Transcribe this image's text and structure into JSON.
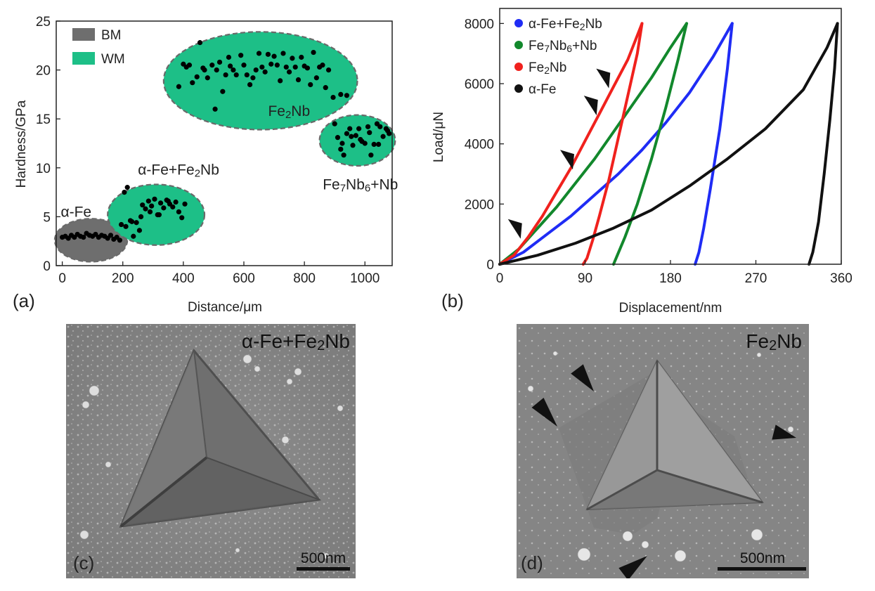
{
  "chart_data": [
    {
      "panel": "(a)",
      "type": "scatter",
      "xlabel": "Distance/μm",
      "ylabel": "Hardness/GPa",
      "xlim": [
        -20,
        1090
      ],
      "ylim": [
        0,
        25
      ],
      "xticks": [
        "0",
        "200",
        "400",
        "600",
        "800",
        "1000"
      ],
      "yticks": [
        "0",
        "5",
        "10",
        "15",
        "20",
        "25"
      ],
      "legend": {
        "placement": "top-left",
        "entries": [
          {
            "label": "BM",
            "color": "#6e6e6e"
          },
          {
            "label": "WM",
            "color": "#1dbf87"
          }
        ]
      },
      "regions": [
        {
          "label": "α-Fe",
          "type": "BM",
          "color": "#6e6e6e",
          "cx": 95,
          "cy": 2.6,
          "rx": 120,
          "ry": 2.2
        },
        {
          "label": "α-Fe+Fe2Nb",
          "type": "WM",
          "color": "#1dbf87",
          "cx": 310,
          "cy": 5.2,
          "rx": 160,
          "ry": 3.1
        },
        {
          "label": "Fe2Nb",
          "type": "WM",
          "color": "#1dbf87",
          "cx": 655,
          "cy": 18.9,
          "rx": 320,
          "ry": 5.0
        },
        {
          "label": "Fe7Nb6+Nb",
          "type": "WM",
          "color": "#1dbf87",
          "cx": 975,
          "cy": 12.8,
          "rx": 125,
          "ry": 2.6
        }
      ],
      "region_labels": [
        {
          "text": "α-Fe",
          "x": -5,
          "y": 5.0
        },
        {
          "text": "α-Fe+Fe2Nb",
          "x": 250,
          "y": 9.3
        },
        {
          "text": "Fe2Nb",
          "x": 680,
          "y": 15.3
        },
        {
          "text": "Fe7Nb6+Nb",
          "x": 985,
          "y": 7.8
        }
      ],
      "series": [
        {
          "group": "α-Fe",
          "x": [
            0,
            10,
            20,
            30,
            40,
            50,
            60,
            70,
            80,
            90,
            100,
            110,
            120,
            130,
            140,
            150,
            160,
            170,
            180,
            190
          ],
          "y": [
            2.9,
            3.0,
            2.8,
            3.1,
            2.9,
            3.2,
            3.0,
            2.9,
            3.3,
            3.1,
            3.0,
            3.2,
            2.9,
            3.1,
            3.0,
            2.8,
            3.1,
            2.7,
            2.9,
            2.6
          ]
        },
        {
          "group": "α-Fe+Fe2Nb",
          "x": [
            195,
            205,
            215,
            225,
            235,
            245,
            255,
            265,
            275,
            285,
            295,
            305,
            315,
            325,
            335,
            345,
            355,
            365,
            375,
            385,
            395,
            405,
            210,
            230,
            260,
            290,
            320,
            350
          ],
          "y": [
            4.2,
            7.5,
            8.0,
            4.6,
            3.0,
            4.4,
            3.6,
            6.2,
            5.8,
            6.6,
            6.1,
            6.8,
            5.2,
            6.4,
            5.9,
            6.7,
            6.3,
            6.0,
            6.5,
            5.5,
            4.9,
            6.3,
            4.0,
            4.5,
            5.0,
            5.5,
            5.2,
            6.6
          ]
        },
        {
          "group": "Fe2Nb",
          "x": [
            385,
            400,
            410,
            420,
            430,
            445,
            455,
            465,
            470,
            480,
            495,
            505,
            510,
            520,
            530,
            540,
            550,
            555,
            565,
            575,
            590,
            600,
            610,
            620,
            630,
            640,
            650,
            660,
            670,
            680,
            690,
            700,
            710,
            720,
            730,
            740,
            750,
            760,
            770,
            780,
            790,
            800,
            810,
            820,
            830,
            840,
            850,
            860,
            870,
            880,
            895,
            920,
            940
          ],
          "y": [
            18.3,
            20.6,
            20.3,
            20.5,
            18.7,
            19.3,
            22.8,
            20.2,
            20.0,
            19.2,
            20.5,
            16.0,
            20.0,
            20.8,
            17.8,
            19.5,
            21.3,
            20.4,
            20.0,
            19.5,
            21.5,
            20.5,
            19.5,
            18.5,
            19.2,
            20.0,
            21.7,
            20.3,
            19.8,
            21.6,
            20.6,
            21.4,
            20.5,
            18.9,
            21.7,
            20.3,
            19.8,
            21.2,
            20.3,
            19.0,
            21.3,
            20.4,
            20.2,
            18.5,
            21.8,
            19.2,
            20.3,
            20.5,
            18.2,
            20.0,
            17.2,
            17.5,
            17.4
          ]
        },
        {
          "group": "Fe7Nb6+Nb",
          "x": [
            900,
            910,
            920,
            930,
            940,
            950,
            960,
            970,
            980,
            990,
            1000,
            1010,
            1020,
            1030,
            1040,
            1050,
            1060,
            1070,
            1080,
            925,
            955,
            985,
            1015,
            1045,
            1075
          ],
          "y": [
            14.5,
            13.1,
            11.9,
            11.3,
            13.5,
            14.0,
            12.3,
            13.3,
            14.0,
            12.7,
            12.5,
            14.2,
            11.3,
            12.4,
            14.5,
            14.2,
            13.2,
            14.0,
            13.5,
            12.5,
            13.2,
            12.9,
            13.6,
            12.4,
            13.8
          ]
        }
      ]
    },
    {
      "panel": "(b)",
      "type": "line",
      "xlabel": "Displacement/nm",
      "ylabel": "Load/μN",
      "xlim": [
        0,
        360
      ],
      "ylim": [
        0,
        8500
      ],
      "xticks": [
        "0",
        "90",
        "180",
        "270",
        "360"
      ],
      "yticks": [
        "0",
        "2000",
        "4000",
        "6000",
        "8000"
      ],
      "legend": {
        "placement": "top-left",
        "entries": [
          {
            "label": "α-Fe+Fe2Nb",
            "color": "#1f2cf5"
          },
          {
            "label": "Fe7Nb6+Nb",
            "color": "#12882c"
          },
          {
            "label": "Fe2Nb",
            "color": "#f0211d"
          },
          {
            "label": "α-Fe",
            "color": "#111111"
          }
        ]
      },
      "series": [
        {
          "name": "α-Fe+Fe2Nb",
          "color": "#1f2cf5",
          "loading_x": [
            0,
            25,
            50,
            75,
            100,
            125,
            150,
            175,
            200,
            225,
            245
          ],
          "loading_y": [
            0,
            400,
            1000,
            1600,
            2300,
            3000,
            3800,
            4700,
            5700,
            6900,
            8000
          ],
          "unloading_x": [
            245,
            240,
            232,
            222,
            215,
            210,
            206
          ],
          "unloading_y": [
            8000,
            6500,
            4500,
            2500,
            1200,
            400,
            0
          ]
        },
        {
          "name": "Fe7Nb6+Nb",
          "color": "#12882c",
          "loading_x": [
            0,
            20,
            40,
            60,
            80,
            100,
            120,
            140,
            160,
            180,
            197
          ],
          "loading_y": [
            0,
            500,
            1200,
            1900,
            2700,
            3500,
            4400,
            5300,
            6200,
            7200,
            8000
          ],
          "unloading_x": [
            197,
            188,
            175,
            160,
            145,
            132,
            124,
            120
          ],
          "unloading_y": [
            8000,
            6800,
            5200,
            3500,
            2000,
            900,
            300,
            0
          ]
        },
        {
          "name": "Fe2Nb",
          "color": "#f0211d",
          "loading_x": [
            0,
            15,
            30,
            45,
            60,
            75,
            90,
            105,
            120,
            135,
            145,
            150
          ],
          "loading_y": [
            0,
            300,
            900,
            1600,
            2400,
            3200,
            4100,
            5000,
            5900,
            6800,
            7600,
            8000
          ],
          "unloading_x": [
            150,
            145,
            135,
            125,
            115,
            105,
            98,
            92,
            88
          ],
          "unloading_y": [
            8000,
            7000,
            5600,
            4200,
            2800,
            1600,
            800,
            200,
            0
          ]
        },
        {
          "name": "α-Fe",
          "color": "#111111",
          "loading_x": [
            0,
            40,
            80,
            120,
            160,
            200,
            240,
            280,
            320,
            345,
            356
          ],
          "loading_y": [
            0,
            300,
            700,
            1200,
            1800,
            2600,
            3500,
            4500,
            5800,
            7200,
            8000
          ],
          "unloading_x": [
            356,
            353,
            348,
            342,
            336,
            330,
            326
          ],
          "unloading_y": [
            8000,
            6500,
            4800,
            3000,
            1400,
            400,
            0
          ]
        }
      ],
      "pop_in_markers": [
        {
          "x": 25,
          "y": 800
        },
        {
          "x": 80,
          "y": 3100
        },
        {
          "x": 105,
          "y": 4900
        },
        {
          "x": 118,
          "y": 5800
        }
      ]
    }
  ],
  "images": [
    {
      "panel": "(c)",
      "label": "α-Fe+Fe2Nb",
      "scalebar": "500nm"
    },
    {
      "panel": "(d)",
      "label": "Fe2Nb",
      "scalebar": "500nm"
    }
  ],
  "colors": {
    "bm_fill": "#6e6e6e",
    "wm_fill": "#1dbf87",
    "sem_background": "#8a8a8a"
  }
}
